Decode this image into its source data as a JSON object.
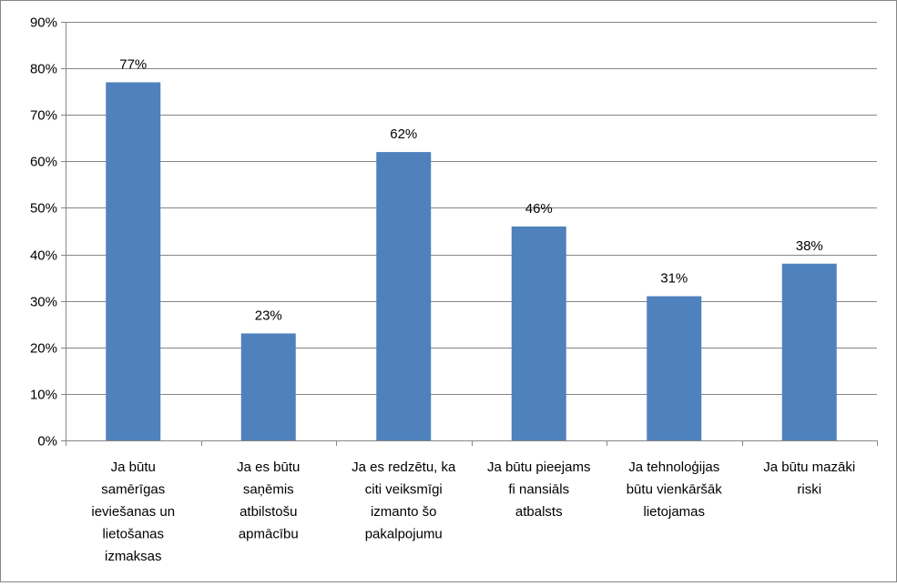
{
  "chart_data": {
    "type": "bar",
    "title": "",
    "xlabel": "",
    "ylabel": "",
    "ylim": [
      0,
      90
    ],
    "yticks": [
      "0%",
      "10%",
      "20%",
      "30%",
      "40%",
      "50%",
      "60%",
      "70%",
      "80%",
      "90%"
    ],
    "grid": true,
    "legend": "none",
    "bar_color": "#4F81BD",
    "categories": [
      [
        "Ja būtu",
        "samērīgas",
        "ieviešanas un",
        "lietošanas",
        "izmaksas"
      ],
      [
        "Ja es būtu",
        "saņēmis",
        "atbilstošu",
        "apmācību"
      ],
      [
        "Ja es redzētu, ka",
        "citi veiksmīgi",
        "izmanto šo",
        "pakalpojumu"
      ],
      [
        "Ja būtu pieejams",
        "fi nansiāls",
        "atbalsts"
      ],
      [
        "Ja tehnoloģijas",
        "būtu vienkāršāk",
        "lietojamas"
      ],
      [
        "Ja būtu mazāki",
        "riski"
      ]
    ],
    "values": [
      77,
      23,
      62,
      46,
      31,
      38
    ],
    "data_labels": [
      "77%",
      "23%",
      "62%",
      "46%",
      "31%",
      "38%"
    ]
  }
}
